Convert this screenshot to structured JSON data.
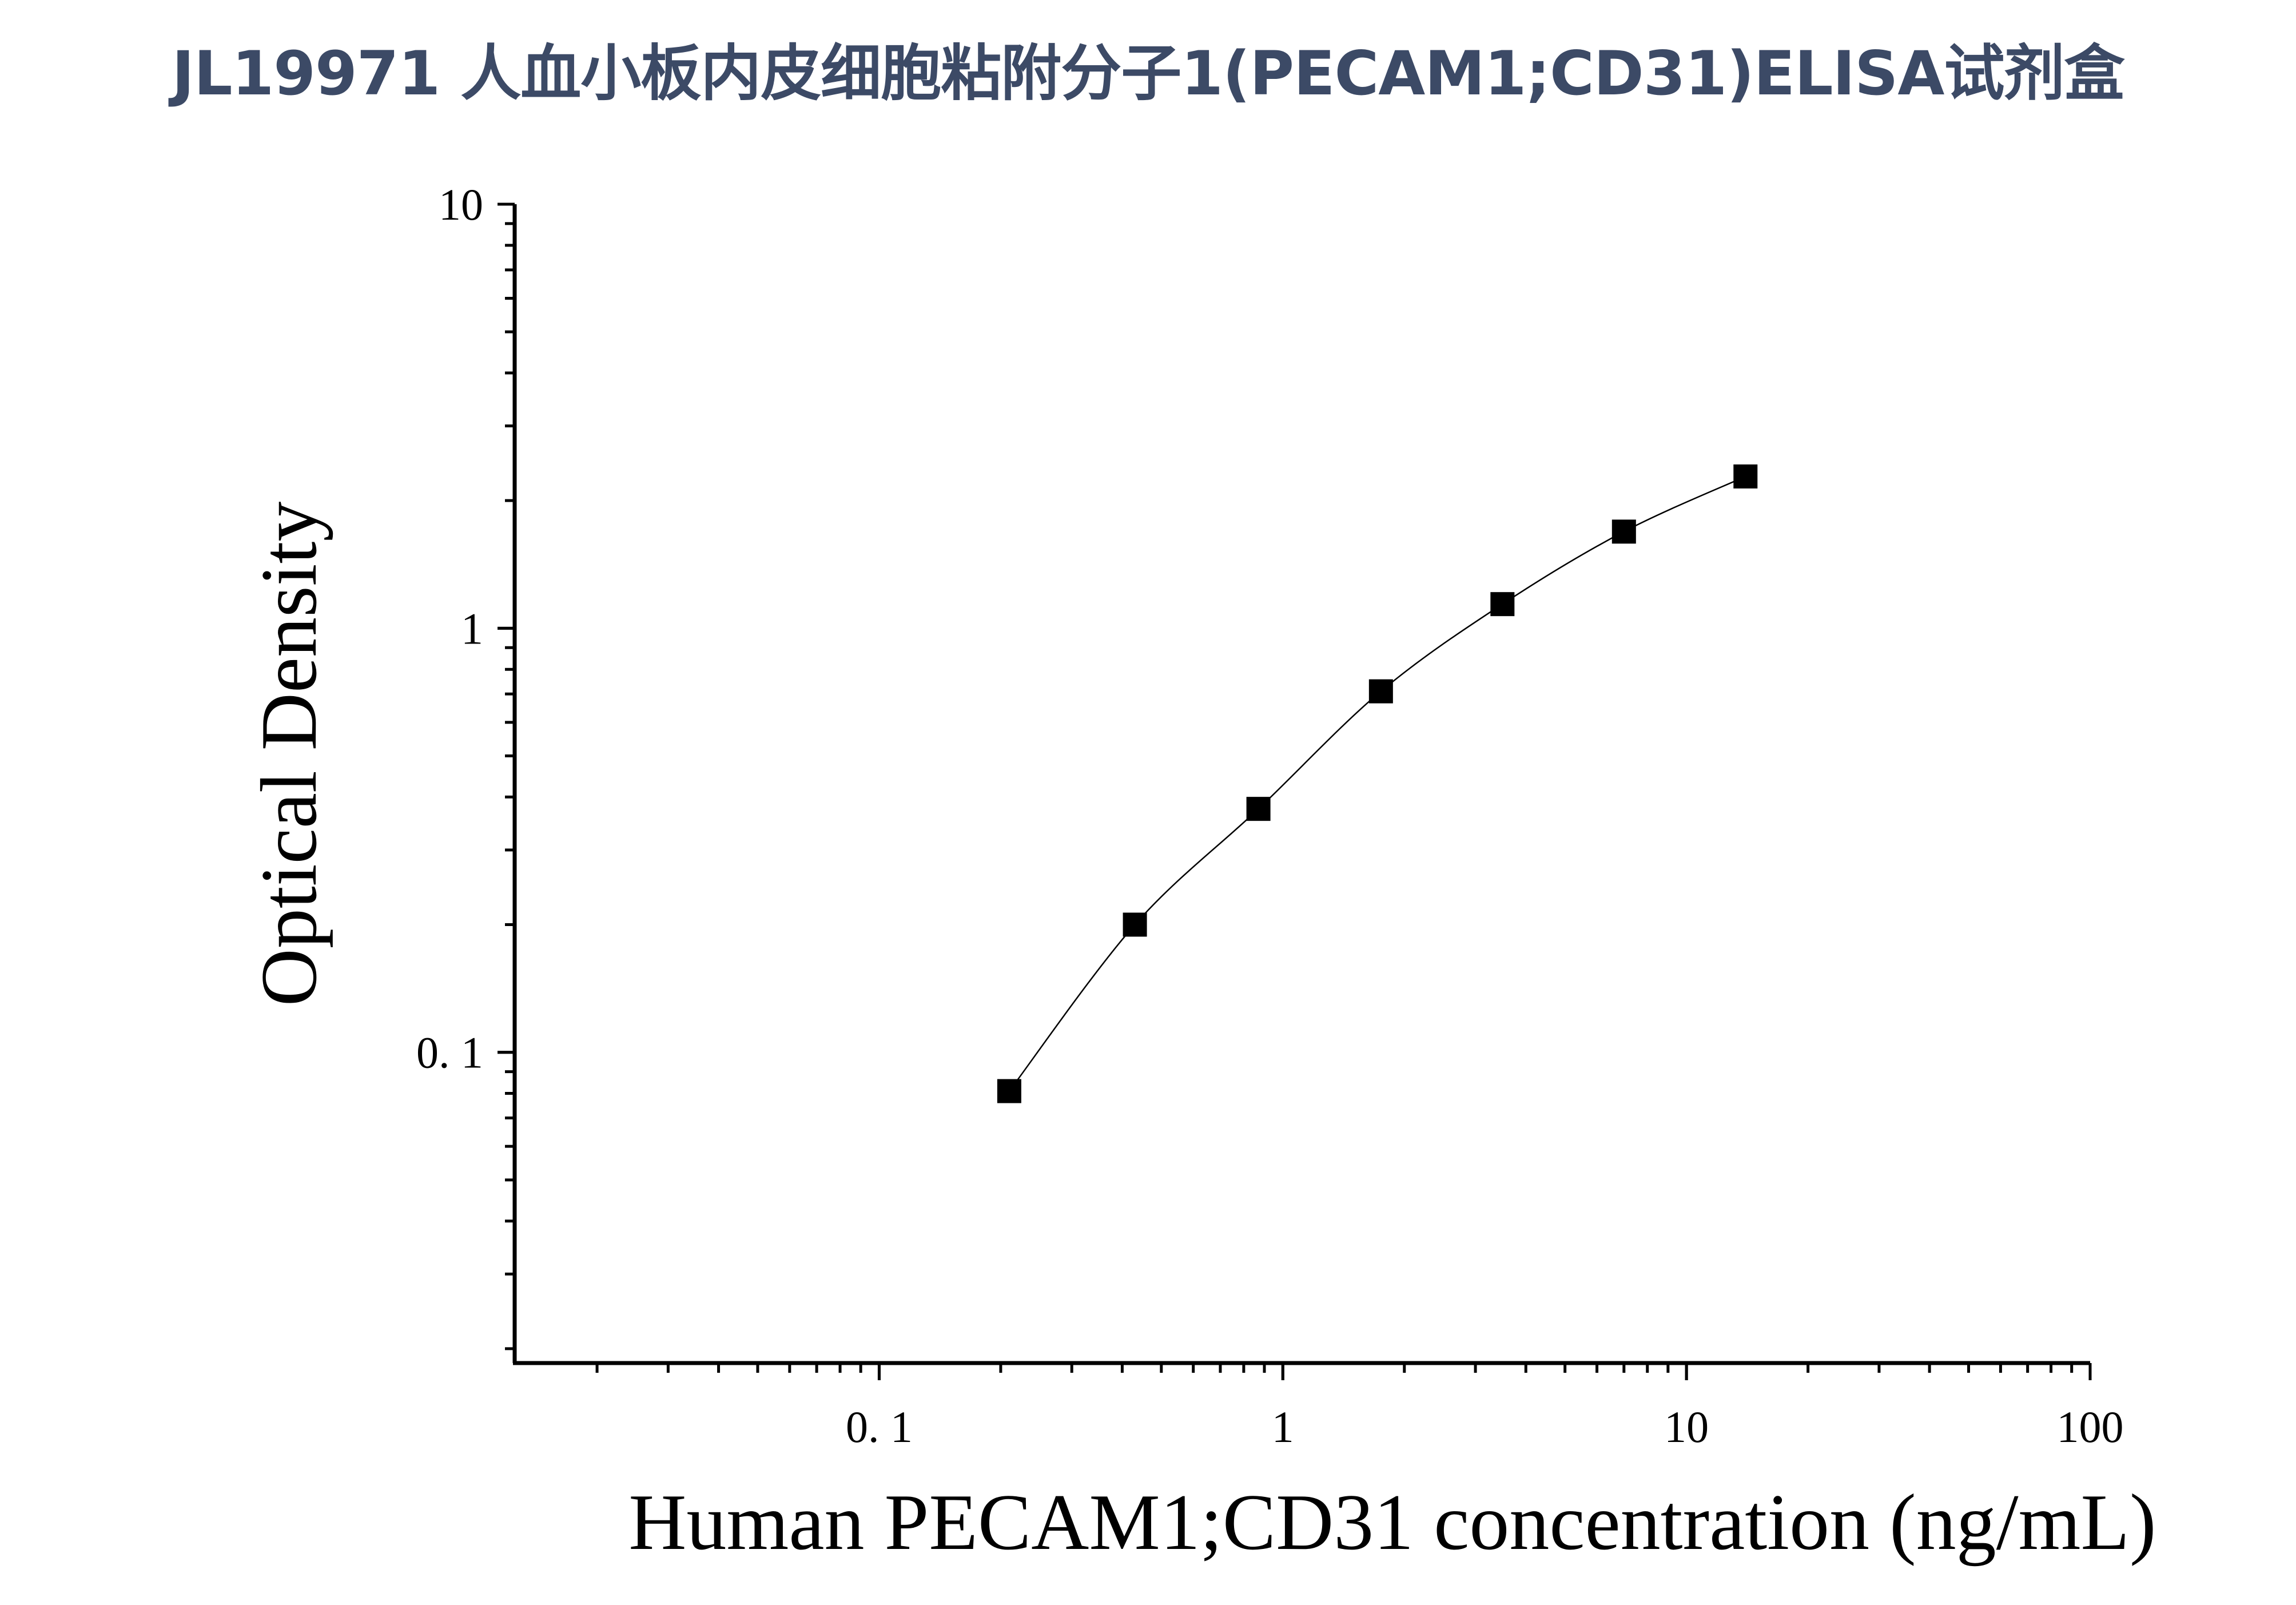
{
  "page": {
    "title": "JL19971 人血小板内皮细胞粘附分子1(PECAM1;CD31)ELISA试剂盒"
  },
  "chart_data": {
    "type": "scatter",
    "title": "",
    "xlabel": "Human PECAM1;CD31 concentration (ng/mL)",
    "ylabel": "Optical Density",
    "x_scale": "log",
    "y_scale": "log",
    "xlim": [
      0.0125,
      100
    ],
    "ylim": [
      0.0185,
      10
    ],
    "x_ticks": [
      0.1,
      1,
      10,
      100
    ],
    "x_tick_labels": [
      "0. 1",
      "1",
      "10",
      "100"
    ],
    "y_ticks": [
      0.1,
      1,
      10
    ],
    "y_tick_labels": [
      "0. 1",
      "1",
      "10"
    ],
    "grid": false,
    "marker": "square",
    "marker_color": "#000000",
    "curve_color": "#000000",
    "series": [
      {
        "x": [
          0.21,
          0.43,
          0.87,
          1.75,
          3.5,
          7.0,
          14.0
        ],
        "y": [
          0.081,
          0.2,
          0.375,
          0.71,
          1.14,
          1.69,
          2.28
        ]
      }
    ]
  }
}
